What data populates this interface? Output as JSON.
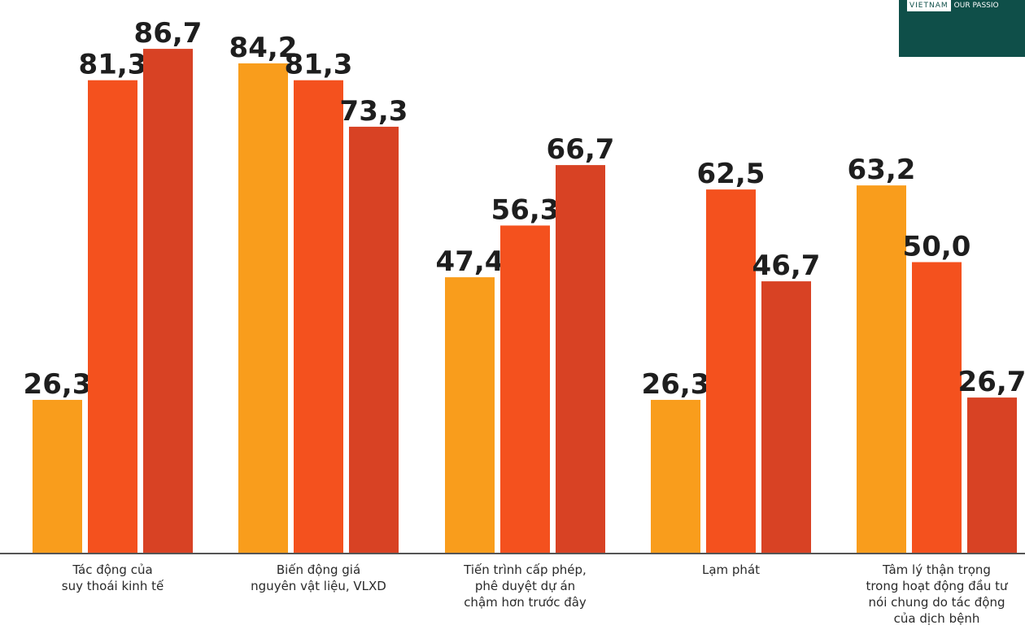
{
  "chart_data": {
    "type": "bar",
    "categories": [
      [
        "Tác động của",
        "suy thoái kinh tế"
      ],
      [
        "Biến động giá",
        "nguyên vật liệu, VLXD"
      ],
      [
        "Tiến trình cấp phép,",
        "phê duyệt dự án",
        "chậm hơn trước đây"
      ],
      [
        "Lạm phát"
      ],
      [
        "Tâm lý thận trọng",
        "trong hoạt động đầu tư",
        "nói chung do tác động",
        "của dịch bệnh"
      ]
    ],
    "series": [
      {
        "color": "#f99d1c",
        "values": [
          "26,3",
          "84,2",
          "47,4",
          "26,3",
          "63,2"
        ]
      },
      {
        "color": "#f4511e",
        "values": [
          "81,3",
          "81,3",
          "56,3",
          "62,5",
          "50,0"
        ]
      },
      {
        "color": "#d84224",
        "values": [
          "86,7",
          "73,3",
          "66,7",
          "46,7",
          "26,7"
        ]
      }
    ],
    "ylim": [
      0,
      100
    ],
    "axis_color": "#555555"
  },
  "logo": {
    "country": "VIETNAM",
    "tagline": "OUR PASSIO"
  }
}
